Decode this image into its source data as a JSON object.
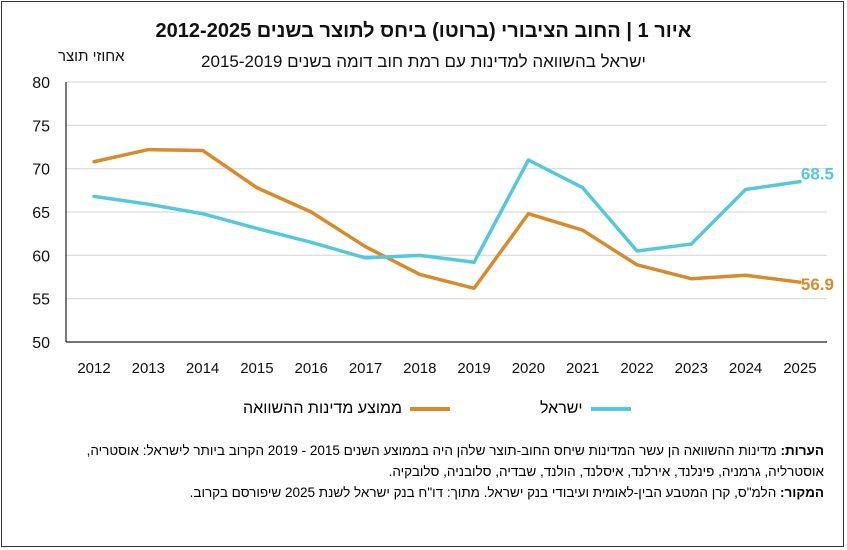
{
  "chart_data": {
    "type": "line",
    "title": "איור 1 | החוב הציבורי (ברוטו) ביחס לתוצר בשנים 2012-2025",
    "subtitle": "ישראל בהשוואה למדינות עם רמת חוב דומה בשנים 2015-2019",
    "ylabel": "אחוזי תוצר",
    "xlabel": "",
    "ylim": [
      50,
      80
    ],
    "yticks": [
      50,
      55,
      60,
      65,
      70,
      75,
      80
    ],
    "grid": true,
    "legend": "bottom",
    "categories": [
      "2012",
      "2013",
      "2014",
      "2015",
      "2016",
      "2017",
      "2018",
      "2019",
      "2020",
      "2021",
      "2022",
      "2023",
      "2024",
      "2025"
    ],
    "series": [
      {
        "name": "ממוצע מדינות ההשוואה",
        "color": "#D98A2B",
        "end_label": "56.9",
        "values": [
          70.8,
          72.2,
          72.1,
          67.8,
          65.0,
          61.0,
          57.8,
          56.2,
          64.8,
          62.9,
          58.9,
          57.3,
          57.7,
          56.9
        ]
      },
      {
        "name": "ישראל",
        "color": "#55C8DC",
        "end_label": "68.5",
        "values": [
          66.8,
          65.9,
          64.8,
          63.1,
          61.5,
          59.7,
          60.0,
          59.2,
          71.0,
          67.8,
          60.5,
          61.3,
          67.6,
          68.5
        ]
      }
    ]
  },
  "notes": {
    "notes_label": "הערות:",
    "notes_text": "מדינות ההשוואה הן עשר המדינות שיחס החוב-תוצר שלהן היה בממוצע השנים 2015 - 2019 הקרוב ביותר לישראל: אוסטריה, אוסטרליה, גרמניה, פינלנד, אירלנד, איסלנד, הולנד, שבדיה, סלובניה, סלובקיה.",
    "source_label": "המקור:",
    "source_text": "הלמ\"ס, קרן המטבע הבין-לאומית ועיבודי בנק ישראל. מתוך: דו\"ח בנק ישראל לשנת 2025 שיפורסם בקרוב."
  }
}
